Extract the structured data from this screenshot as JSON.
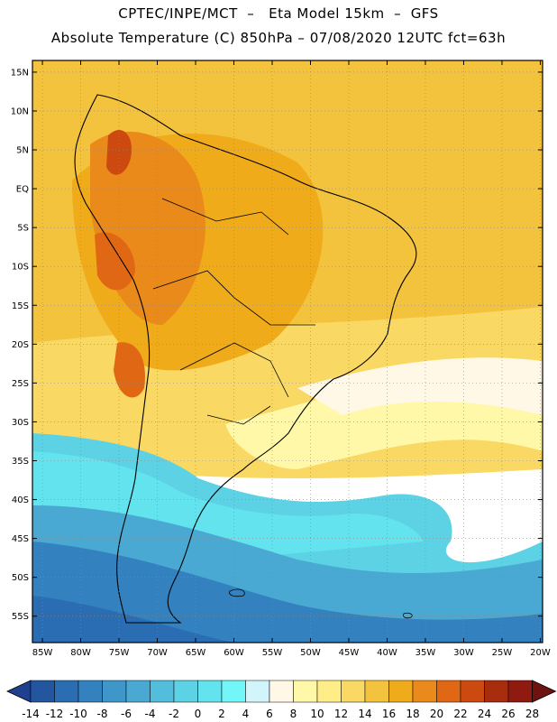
{
  "header": {
    "line1": "CPTEC/INPE/MCT  –   Eta Model 15km  –  GFS",
    "line2": "Absolute Temperature (C) 850hPa – 07/08/2020 12UTC fct=63h"
  },
  "axes": {
    "lat_labels": [
      "15N",
      "10N",
      "5N",
      "EQ",
      "5S",
      "10S",
      "15S",
      "20S",
      "25S",
      "30S",
      "35S",
      "40S",
      "45S",
      "50S",
      "55S"
    ],
    "lat_values": [
      15,
      10,
      5,
      0,
      -5,
      -10,
      -15,
      -20,
      -25,
      -30,
      -35,
      -40,
      -45,
      -50,
      -55
    ],
    "lon_labels": [
      "85W",
      "80W",
      "75W",
      "70W",
      "65W",
      "60W",
      "55W",
      "50W",
      "45W",
      "40W",
      "35W",
      "30W",
      "25W",
      "20W"
    ],
    "lon_values": [
      -85,
      -80,
      -75,
      -70,
      -65,
      -60,
      -55,
      -50,
      -45,
      -40,
      -35,
      -30,
      -25,
      -20
    ]
  },
  "colorbar": {
    "labels": [
      "-14",
      "-12",
      "-10",
      "-8",
      "-6",
      "-4",
      "-2",
      "0",
      "2",
      "4",
      "6",
      "8",
      "10",
      "12",
      "14",
      "16",
      "18",
      "20",
      "22",
      "24",
      "26",
      "28"
    ],
    "colors": [
      "#1f3f8f",
      "#2456a0",
      "#2b6db3",
      "#3382bf",
      "#3f97c9",
      "#4aa9d3",
      "#52bedc",
      "#5cd2e4",
      "#63e3ed",
      "#72f6f7",
      "#d2f4fb",
      "#fff8e6",
      "#fff8a8",
      "#ffed88",
      "#f9d863",
      "#f4c33e",
      "#f0ab1a",
      "#e98a1a",
      "#e06814",
      "#cc4a10",
      "#a82c0e",
      "#8f1a10",
      "#6e1410"
    ]
  }
}
